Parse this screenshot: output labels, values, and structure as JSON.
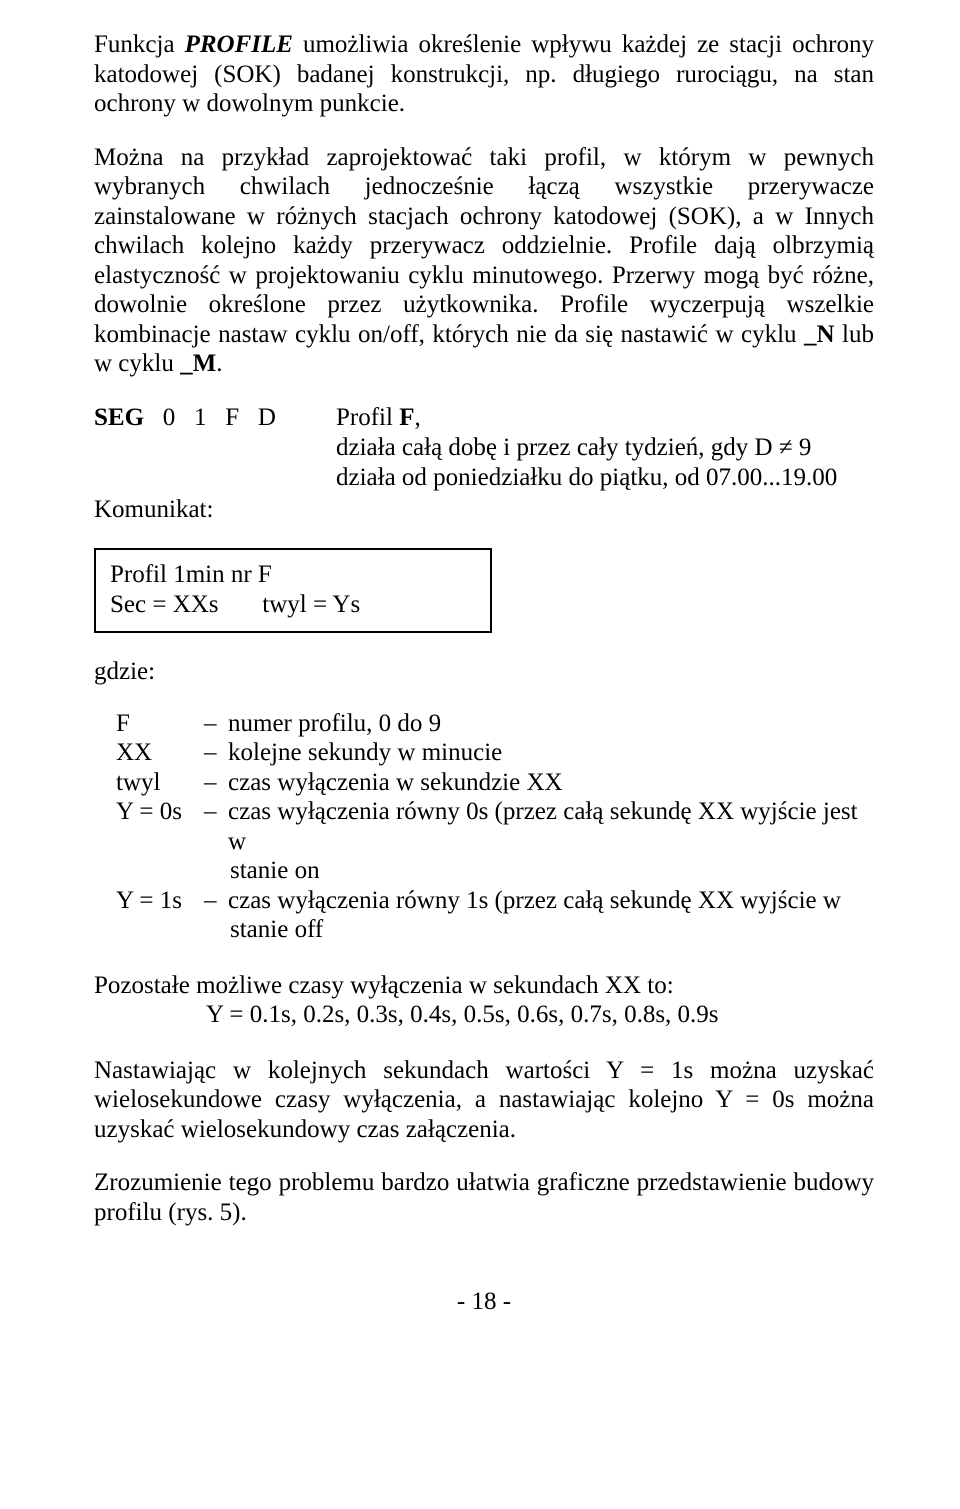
{
  "para1_a": "Funkcja ",
  "para1_profile": "PROFILE",
  "para1_b": " umożliwia określenie wpływu każdej ze stacji ochrony katodowej (SOK) badanej konstrukcji, np. długiego rurociągu, na stan ochrony w dowolnym punkcie.",
  "para2_a": "Można na przykład zaprojektować taki profil, w którym w pewnych wybranych chwilach jednocześnie łączą wszystkie przerywacze zainstalowane w różnych stacjach ochrony katodowej (SOK), a w Innych chwilach kolejno każdy przerywacz oddzielnie. Profile dają olbrzymią elastyczność w projektowaniu cyklu minutowego. Przerwy mogą być różne, dowolnie określone przez użytkownika. Profile wyczerpują wszelkie kombinacje nastaw cyklu on/off, których nie da się nastawić w cyklu ",
  "para2_n": "_N",
  "para2_mid": " lub w cyklu ",
  "para2_m": "_M",
  "para2_end": ".",
  "seg_left_a": "SEG",
  "seg_left_rest": "   0   1   F   D",
  "seg_r1_a": "Profil ",
  "seg_r1_f": "F",
  "seg_r1_b": ",",
  "seg_r2": "działa całą dobę i przez cały tydzień, gdy D ≠ 9",
  "seg_r3": "działa od poniedziałku do piątku, od 07.00...19.00",
  "komunikat": "Komunikat:",
  "box_l1": "Profil 1min nr F",
  "box_l2": "Sec = XXs       twyl = Ys",
  "where": "gdzie:",
  "defs": [
    {
      "sym": "F",
      "text": "numer profilu,  0 do 9"
    },
    {
      "sym": "XX",
      "text": "kolejne sekundy w minucie"
    },
    {
      "sym": "twyl",
      "text": "czas wyłączenia w sekundzie XX"
    },
    {
      "sym": "Y = 0s",
      "text": "czas wyłączenia równy 0s (przez całą sekundę XX wyjście jest w",
      "cont": "stanie on"
    },
    {
      "sym": "Y = 1s",
      "text": "czas wyłączenia równy 1s (przez całą sekundę XX wyjście w",
      "cont": "stanie off"
    }
  ],
  "poz1": "Pozostałe możliwe czasy wyłączenia w sekundach XX to:",
  "poz2": "Y = 0.1s, 0.2s, 0.3s, 0.4s, 0.5s, 0.6s, 0.7s, 0.8s, 0.9s",
  "para3": "Nastawiając w kolejnych sekundach wartości Y = 1s można uzyskać wielosekundowe czasy wyłączenia, a nastawiając kolejno Y = 0s można uzyskać wielosekundowy czas załączenia.",
  "para4": "Zrozumienie tego problemu bardzo ułatwia graficzne przedstawienie budowy profilu (rys. 5).",
  "pagenum": "- 18 -"
}
